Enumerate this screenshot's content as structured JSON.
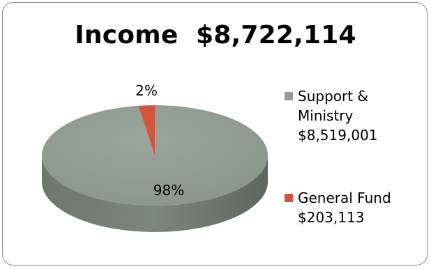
{
  "chart_data": {
    "type": "pie",
    "title": "Income  $8,722,114",
    "categories": [
      "Support & Ministry",
      "General Fund"
    ],
    "values": [
      8519001,
      203113
    ],
    "value_labels": [
      "$8,519,001",
      "$203,113"
    ],
    "percent_labels": [
      "98%",
      "2%"
    ],
    "colors": [
      "#929e94",
      "#d35540"
    ],
    "legend_position": "right",
    "style": "3d"
  },
  "legend": [
    {
      "lines": [
        "Support &",
        "Ministry",
        "$8,519,001"
      ],
      "color": "#929e94"
    },
    {
      "lines": [
        "General Fund",
        "$203,113"
      ],
      "color": "#d35540"
    }
  ]
}
